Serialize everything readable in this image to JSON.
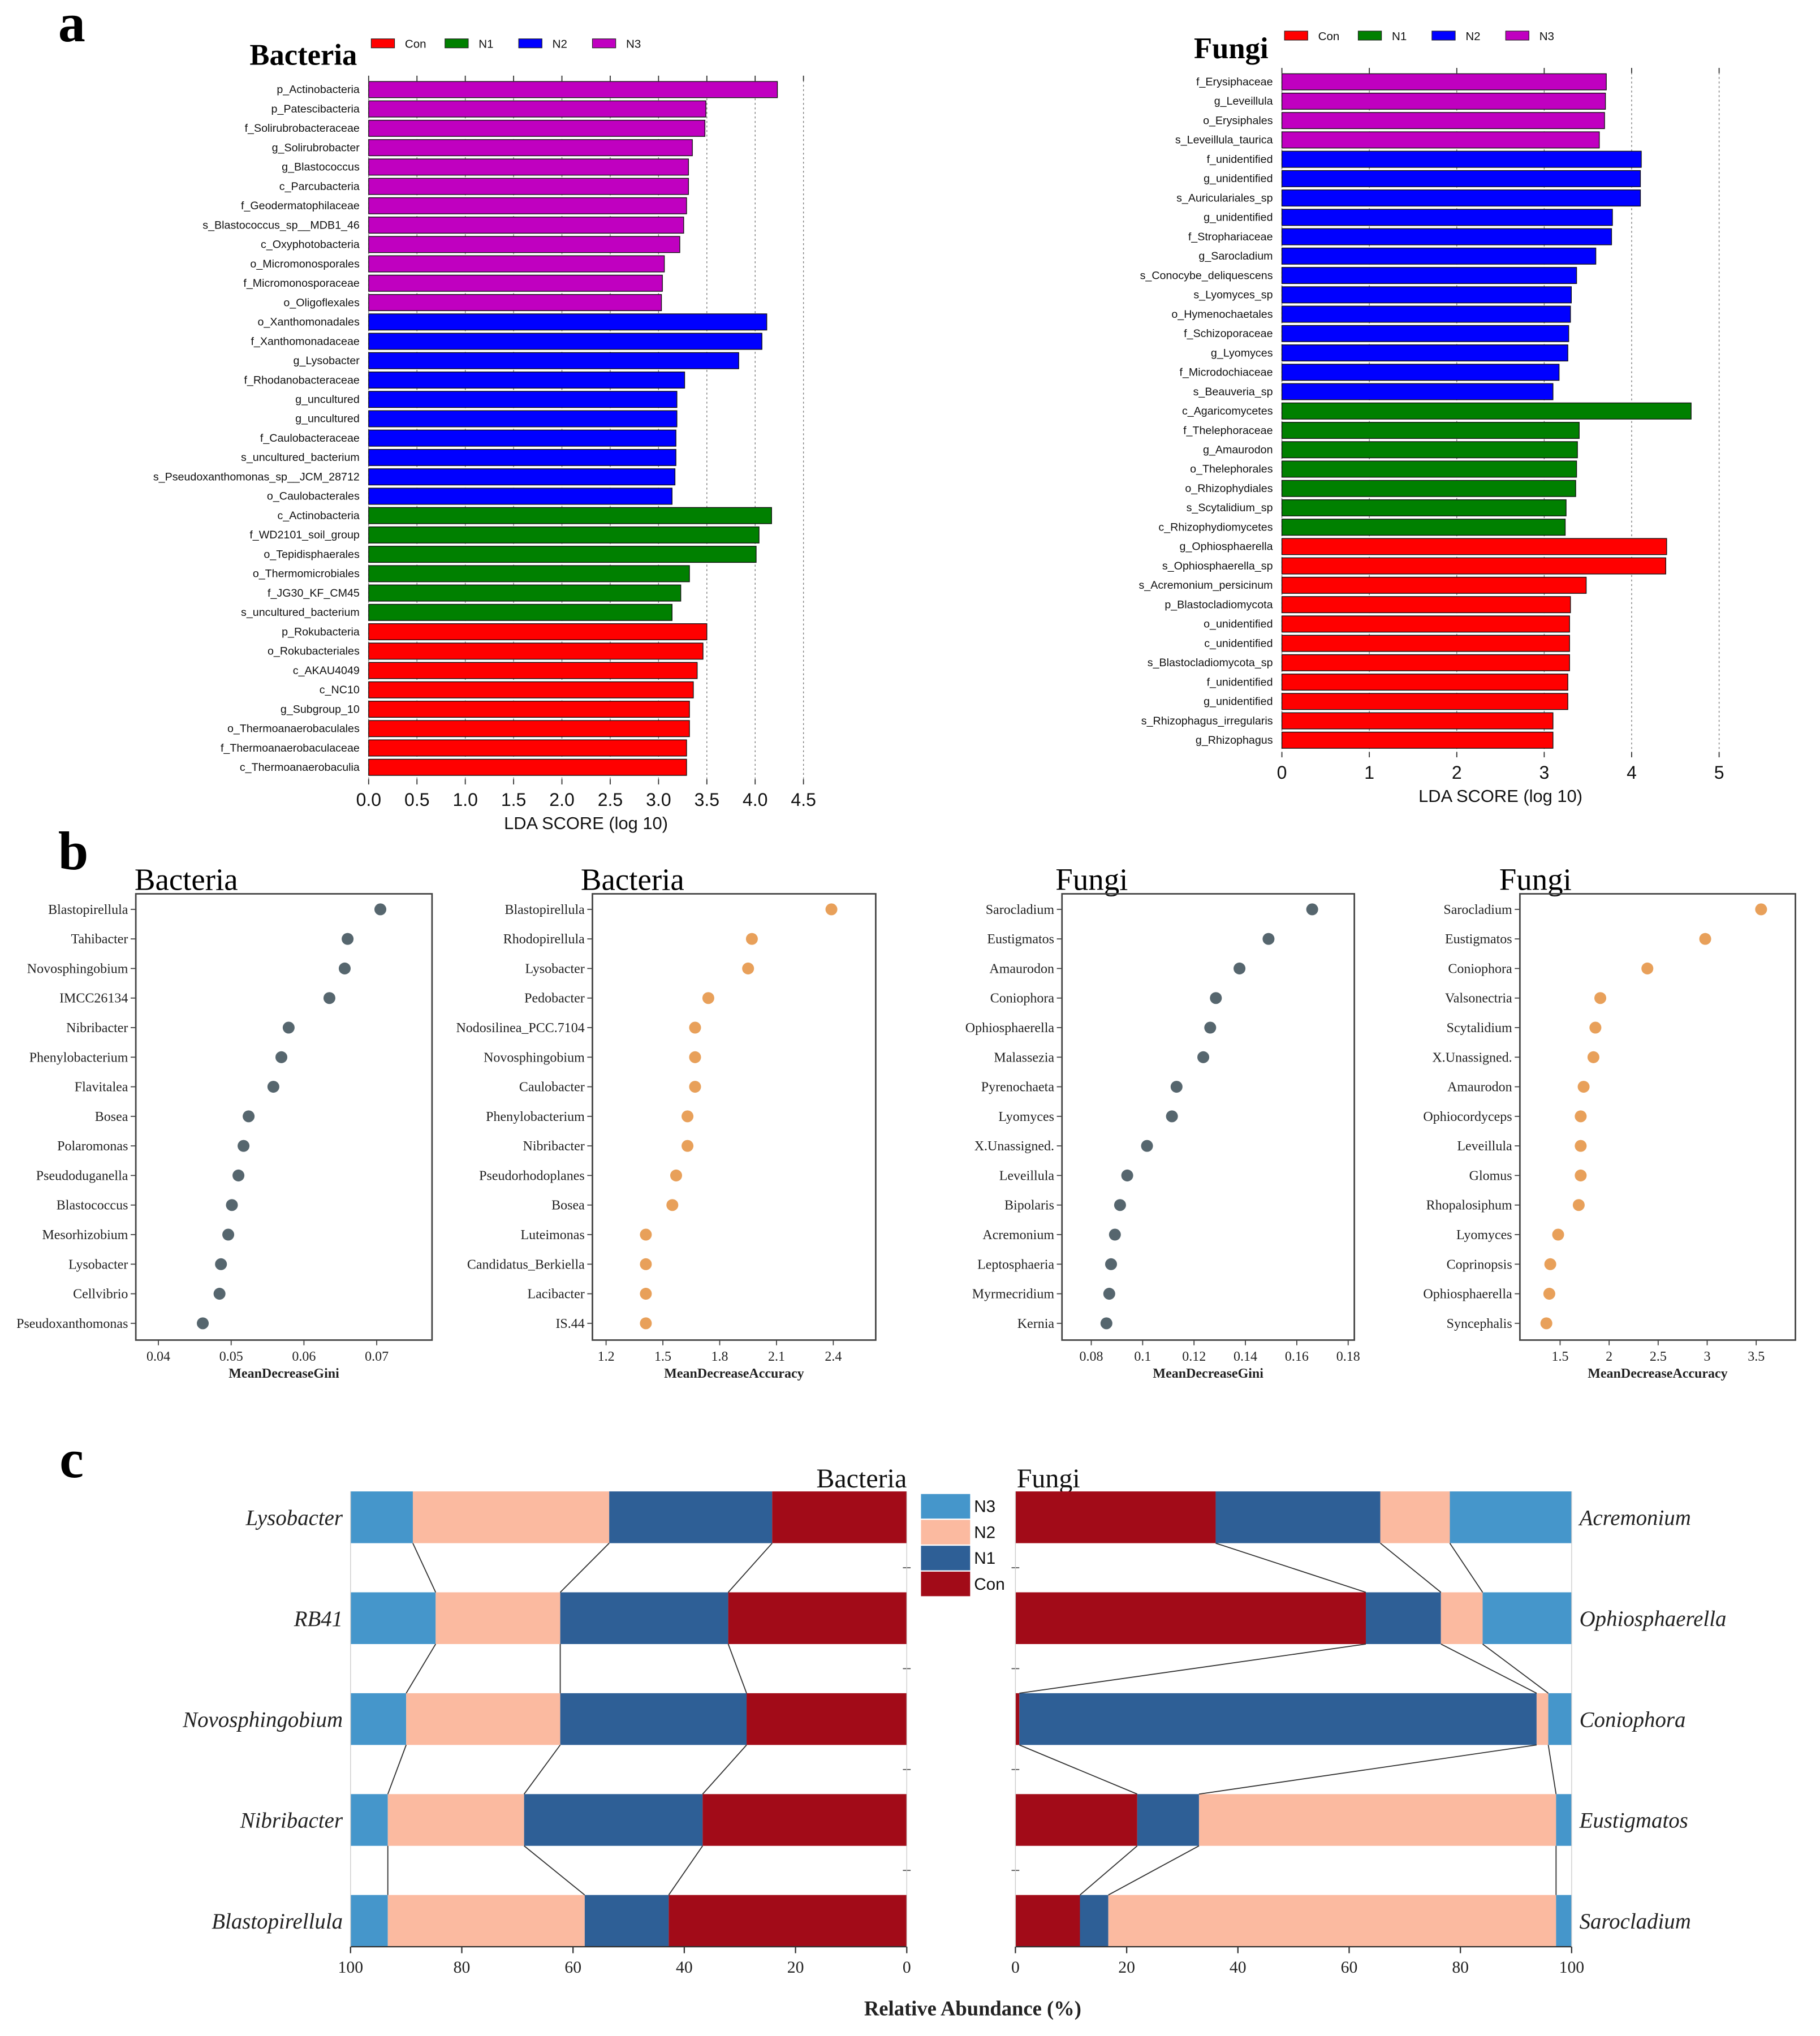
{
  "panel_labels": [
    "a",
    "b",
    "c"
  ],
  "colors": {
    "Con": "#ff0000",
    "N1": "#008000",
    "N2": "#0000ff",
    "N3": "#c000c0",
    "gini_dot": "#56666e",
    "accuracy_dot": "#e8a05a",
    "stack_N3": "#4596cb",
    "stack_N2": "#fbbaa0",
    "stack_N1": "#2e5f96",
    "stack_Con": "#a20b18"
  },
  "chart_data": [
    {
      "type": "bar",
      "orientation": "horizontal",
      "title": "Bacteria",
      "legend": [
        "Con",
        "N1",
        "N2",
        "N3"
      ],
      "legend_placement": "top",
      "xlabel": "LDA SCORE (log 10)",
      "xlim": [
        0,
        4.5
      ],
      "xticks": [
        "0.0",
        "0.5",
        "1.0",
        "1.5",
        "2.0",
        "2.5",
        "3.0",
        "3.5",
        "4.0",
        "4.5"
      ],
      "bars": [
        {
          "label": "p_Actinobacteria",
          "group": "N3",
          "value": 4.23
        },
        {
          "label": "p_Patescibacteria",
          "group": "N3",
          "value": 3.49
        },
        {
          "label": "f_Solirubrobacteraceae",
          "group": "N3",
          "value": 3.48
        },
        {
          "label": "g_Solirubrobacter",
          "group": "N3",
          "value": 3.35
        },
        {
          "label": "g_Blastococcus",
          "group": "N3",
          "value": 3.31
        },
        {
          "label": "c_Parcubacteria",
          "group": "N3",
          "value": 3.31
        },
        {
          "label": "f_Geodermatophilaceae",
          "group": "N3",
          "value": 3.29
        },
        {
          "label": "s_Blastococcus_sp__MDB1_46",
          "group": "N3",
          "value": 3.26
        },
        {
          "label": "c_Oxyphotobacteria",
          "group": "N3",
          "value": 3.22
        },
        {
          "label": "o_Micromonosporales",
          "group": "N3",
          "value": 3.06
        },
        {
          "label": "f_Micromonosporaceae",
          "group": "N3",
          "value": 3.04
        },
        {
          "label": "o_Oligoflexales",
          "group": "N3",
          "value": 3.03
        },
        {
          "label": "o_Xanthomonadales",
          "group": "N2",
          "value": 4.12
        },
        {
          "label": "f_Xanthomonadaceae",
          "group": "N2",
          "value": 4.07
        },
        {
          "label": "g_Lysobacter",
          "group": "N2",
          "value": 3.83
        },
        {
          "label": "f_Rhodanobacteraceae",
          "group": "N2",
          "value": 3.27
        },
        {
          "label": "g_uncultured",
          "group": "N2",
          "value": 3.19
        },
        {
          "label": "g_uncultured",
          "group": "N2",
          "value": 3.19
        },
        {
          "label": "f_Caulobacteraceae",
          "group": "N2",
          "value": 3.18
        },
        {
          "label": "s_uncultured_bacterium",
          "group": "N2",
          "value": 3.18
        },
        {
          "label": "s_Pseudoxanthomonas_sp__JCM_28712",
          "group": "N2",
          "value": 3.17
        },
        {
          "label": "o_Caulobacterales",
          "group": "N2",
          "value": 3.14
        },
        {
          "label": "c_Actinobacteria",
          "group": "N1",
          "value": 4.17
        },
        {
          "label": "f_WD2101_soil_group",
          "group": "N1",
          "value": 4.04
        },
        {
          "label": "o_Tepidisphaerales",
          "group": "N1",
          "value": 4.01
        },
        {
          "label": "o_Thermomicrobiales",
          "group": "N1",
          "value": 3.32
        },
        {
          "label": "f_JG30_KF_CM45",
          "group": "N1",
          "value": 3.23
        },
        {
          "label": "s_uncultured_bacterium",
          "group": "N1",
          "value": 3.14
        },
        {
          "label": "p_Rokubacteria",
          "group": "Con",
          "value": 3.5
        },
        {
          "label": "o_Rokubacteriales",
          "group": "Con",
          "value": 3.46
        },
        {
          "label": "c_AKAU4049",
          "group": "Con",
          "value": 3.4
        },
        {
          "label": "c_NC10",
          "group": "Con",
          "value": 3.36
        },
        {
          "label": "g_Subgroup_10",
          "group": "Con",
          "value": 3.32
        },
        {
          "label": "o_Thermoanaerobaculales",
          "group": "Con",
          "value": 3.32
        },
        {
          "label": "f_Thermoanaerobaculaceae",
          "group": "Con",
          "value": 3.29
        },
        {
          "label": "c_Thermoanaerobaculia",
          "group": "Con",
          "value": 3.29
        }
      ]
    },
    {
      "type": "bar",
      "orientation": "horizontal",
      "title": "Fungi",
      "legend": [
        "Con",
        "N1",
        "N2",
        "N3"
      ],
      "legend_placement": "top",
      "xlabel": "LDA SCORE (log 10)",
      "xlim": [
        0,
        5
      ],
      "xticks": [
        "0",
        "1",
        "2",
        "3",
        "4",
        "5"
      ],
      "bars": [
        {
          "label": "f_Erysiphaceae",
          "group": "N3",
          "value": 3.71
        },
        {
          "label": "g_Leveillula",
          "group": "N3",
          "value": 3.7
        },
        {
          "label": "o_Erysiphales",
          "group": "N3",
          "value": 3.69
        },
        {
          "label": "s_Leveillula_taurica",
          "group": "N3",
          "value": 3.63
        },
        {
          "label": "f_unidentified",
          "group": "N2",
          "value": 4.11
        },
        {
          "label": "g_unidentified",
          "group": "N2",
          "value": 4.1
        },
        {
          "label": "s_Auriculariales_sp",
          "group": "N2",
          "value": 4.1
        },
        {
          "label": "g_unidentified",
          "group": "N2",
          "value": 3.78
        },
        {
          "label": "f_Strophariaceae",
          "group": "N2",
          "value": 3.77
        },
        {
          "label": "g_Sarocladium",
          "group": "N2",
          "value": 3.59
        },
        {
          "label": "s_Conocybe_deliquescens",
          "group": "N2",
          "value": 3.37
        },
        {
          "label": "s_Lyomyces_sp",
          "group": "N2",
          "value": 3.31
        },
        {
          "label": "o_Hymenochaetales",
          "group": "N2",
          "value": 3.3
        },
        {
          "label": "f_Schizoporaceae",
          "group": "N2",
          "value": 3.28
        },
        {
          "label": "g_Lyomyces",
          "group": "N2",
          "value": 3.27
        },
        {
          "label": "f_Microdochiaceae",
          "group": "N2",
          "value": 3.17
        },
        {
          "label": "s_Beauveria_sp",
          "group": "N2",
          "value": 3.1
        },
        {
          "label": "c_Agaricomycetes",
          "group": "N1",
          "value": 4.68
        },
        {
          "label": "f_Thelephoraceae",
          "group": "N1",
          "value": 3.4
        },
        {
          "label": "g_Amaurodon",
          "group": "N1",
          "value": 3.38
        },
        {
          "label": "o_Thelephorales",
          "group": "N1",
          "value": 3.37
        },
        {
          "label": "o_Rhizophydiales",
          "group": "N1",
          "value": 3.36
        },
        {
          "label": "s_Scytalidium_sp",
          "group": "N1",
          "value": 3.25
        },
        {
          "label": "c_Rhizophydiomycetes",
          "group": "N1",
          "value": 3.24
        },
        {
          "label": "g_Ophiosphaerella",
          "group": "Con",
          "value": 4.4
        },
        {
          "label": "s_Ophiosphaerella_sp",
          "group": "Con",
          "value": 4.39
        },
        {
          "label": "s_Acremonium_persicinum",
          "group": "Con",
          "value": 3.48
        },
        {
          "label": "p_Blastocladiomycota",
          "group": "Con",
          "value": 3.3
        },
        {
          "label": "o_unidentified",
          "group": "Con",
          "value": 3.29
        },
        {
          "label": "c_unidentified",
          "group": "Con",
          "value": 3.29
        },
        {
          "label": "s_Blastocladiomycota_sp",
          "group": "Con",
          "value": 3.29
        },
        {
          "label": "f_unidentified",
          "group": "Con",
          "value": 3.27
        },
        {
          "label": "g_unidentified",
          "group": "Con",
          "value": 3.27
        },
        {
          "label": "s_Rhizophagus_irregularis",
          "group": "Con",
          "value": 3.1
        },
        {
          "label": "g_Rhizophagus",
          "group": "Con",
          "value": 3.1
        }
      ]
    },
    {
      "type": "scatter",
      "title": "Bacteria",
      "xlabel": "MeanDecreaseGini",
      "xlim": [
        0.0369,
        0.0776
      ],
      "xticks": [
        0.04,
        0.05,
        0.06,
        0.07
      ],
      "xtick_labels": [
        "0.04",
        "0.05",
        "0.06",
        "0.07"
      ],
      "grid": false,
      "points": [
        {
          "label": "Blastopirellula",
          "value": 0.0705
        },
        {
          "label": "Tahibacter",
          "value": 0.066
        },
        {
          "label": "Novosphingobium",
          "value": 0.0656
        },
        {
          "label": "IMCC26134",
          "value": 0.0635
        },
        {
          "label": "Nibribacter",
          "value": 0.0579
        },
        {
          "label": "Phenylobacterium",
          "value": 0.0569
        },
        {
          "label": "Flavitalea",
          "value": 0.0558
        },
        {
          "label": "Bosea",
          "value": 0.0524
        },
        {
          "label": "Polaromonas",
          "value": 0.0517
        },
        {
          "label": "Pseudoduganella",
          "value": 0.051
        },
        {
          "label": "Blastococcus",
          "value": 0.0501
        },
        {
          "label": "Mesorhizobium",
          "value": 0.0496
        },
        {
          "label": "Lysobacter",
          "value": 0.0486
        },
        {
          "label": "Cellvibrio",
          "value": 0.0484
        },
        {
          "label": "Pseudoxanthomonas",
          "value": 0.0461
        }
      ]
    },
    {
      "type": "scatter",
      "title": "Bacteria",
      "xlabel": "MeanDecreaseAccuracy",
      "xlim": [
        1.128,
        2.624
      ],
      "xticks": [
        1.2,
        1.5,
        1.8,
        2.1,
        2.4
      ],
      "xtick_labels": [
        "1.2",
        "1.5",
        "1.8",
        "2.1",
        "2.4"
      ],
      "grid": false,
      "points": [
        {
          "label": "Blastopirellula",
          "value": 2.39
        },
        {
          "label": "Rhodopirellula",
          "value": 1.97
        },
        {
          "label": "Lysobacter",
          "value": 1.95
        },
        {
          "label": "Pedobacter",
          "value": 1.74
        },
        {
          "label": "Nodosilinea_PCC.7104",
          "value": 1.67
        },
        {
          "label": "Novosphingobium",
          "value": 1.67
        },
        {
          "label": "Caulobacter",
          "value": 1.67
        },
        {
          "label": "Phenylobacterium",
          "value": 1.63
        },
        {
          "label": "Nibribacter",
          "value": 1.63
        },
        {
          "label": "Pseudorhodoplanes",
          "value": 1.57
        },
        {
          "label": "Bosea",
          "value": 1.55
        },
        {
          "label": "Luteimonas",
          "value": 1.41
        },
        {
          "label": "Candidatus_Berkiella",
          "value": 1.41
        },
        {
          "label": "Lacibacter",
          "value": 1.41
        },
        {
          "label": "IS.44",
          "value": 1.41
        }
      ]
    },
    {
      "type": "scatter",
      "title": "Fungi",
      "xlabel": "MeanDecreaseGini",
      "xlim": [
        0.0686,
        0.1824
      ],
      "xticks": [
        0.08,
        0.1,
        0.12,
        0.14,
        0.16,
        0.18
      ],
      "xtick_labels": [
        "0.08",
        "0.1",
        "0.12",
        "0.14",
        "0.16",
        "0.18"
      ],
      "grid": false,
      "points": [
        {
          "label": "Sarocladium",
          "value": 0.166
        },
        {
          "label": "Eustigmatos",
          "value": 0.149
        },
        {
          "label": "Amaurodon",
          "value": 0.1377
        },
        {
          "label": "Coniophora",
          "value": 0.1285
        },
        {
          "label": "Ophiosphaerella",
          "value": 0.1263
        },
        {
          "label": "Malassezia",
          "value": 0.1236
        },
        {
          "label": "Pyrenochaeta",
          "value": 0.1132
        },
        {
          "label": "Lyomyces",
          "value": 0.1114
        },
        {
          "label": "X.Unassigned.",
          "value": 0.1017
        },
        {
          "label": "Leveillula",
          "value": 0.094
        },
        {
          "label": "Bipolaris",
          "value": 0.0912
        },
        {
          "label": "Acremonium",
          "value": 0.0892
        },
        {
          "label": "Leptosphaeria",
          "value": 0.0877
        },
        {
          "label": "Myrmecridium",
          "value": 0.087
        },
        {
          "label": "Kernia",
          "value": 0.0859
        }
      ]
    },
    {
      "type": "scatter",
      "title": "Fungi",
      "xlabel": "MeanDecreaseAccuracy",
      "xlim": [
        1.09,
        3.9
      ],
      "xticks": [
        1.5,
        2,
        2.5,
        3,
        3.5
      ],
      "xtick_labels": [
        "1.5",
        "2",
        "2.5",
        "3",
        "3.5"
      ],
      "grid": false,
      "points": [
        {
          "label": "Sarocladium",
          "value": 3.55
        },
        {
          "label": "Eustigmatos",
          "value": 2.98
        },
        {
          "label": "Coniophora",
          "value": 2.39
        },
        {
          "label": "Valsonectria",
          "value": 1.91
        },
        {
          "label": "Scytalidium",
          "value": 1.86
        },
        {
          "label": "X.Unassigned.",
          "value": 1.84
        },
        {
          "label": "Amaurodon",
          "value": 1.74
        },
        {
          "label": "Ophiocordyceps",
          "value": 1.71
        },
        {
          "label": "Leveillula",
          "value": 1.71
        },
        {
          "label": "Glomus",
          "value": 1.71
        },
        {
          "label": "Rhopalosiphum",
          "value": 1.69
        },
        {
          "label": "Lyomyces",
          "value": 1.48
        },
        {
          "label": "Coprinopsis",
          "value": 1.4
        },
        {
          "label": "Ophiosphaerella",
          "value": 1.39
        },
        {
          "label": "Syncephalis",
          "value": 1.36
        }
      ]
    },
    {
      "type": "bar",
      "stacked": true,
      "orientation": "horizontal",
      "title": "Bacteria",
      "reversed_x": true,
      "xlim": [
        100,
        0
      ],
      "xticks": [
        "100",
        "80",
        "60",
        "40",
        "20",
        "0"
      ],
      "segment_order": [
        "N3",
        "N2",
        "N1",
        "Con"
      ],
      "rows": [
        {
          "label": "Lysobacter",
          "values": {
            "N3": 11.2,
            "N2": 35.3,
            "N1": 29.3,
            "Con": 24.2
          }
        },
        {
          "label": "RB41",
          "values": {
            "N3": 15.3,
            "N2": 22.4,
            "N1": 30.2,
            "Con": 32.1
          }
        },
        {
          "label": "Novosphingobium",
          "values": {
            "N3": 10.0,
            "N2": 27.7,
            "N1": 33.5,
            "Con": 28.8
          }
        },
        {
          "label": "Nibribacter",
          "values": {
            "N3": 6.7,
            "N2": 24.5,
            "N1": 32.1,
            "Con": 36.7
          }
        },
        {
          "label": "Blastopirellula",
          "values": {
            "N3": 6.7,
            "N2": 35.4,
            "N1": 15.1,
            "Con": 42.8
          }
        }
      ]
    },
    {
      "type": "bar",
      "stacked": true,
      "orientation": "horizontal",
      "title": "Fungi",
      "reversed_x": false,
      "xlim": [
        0,
        100
      ],
      "xticks": [
        "0",
        "20",
        "40",
        "60",
        "80",
        "100"
      ],
      "segment_order": [
        "Con",
        "N1",
        "N2",
        "N3"
      ],
      "rows": [
        {
          "label": "Acremonium",
          "values": {
            "Con": 36.0,
            "N1": 29.6,
            "N2": 12.5,
            "N3": 21.9
          }
        },
        {
          "label": "Ophiosphaerella",
          "values": {
            "Con": 63.0,
            "N1": 13.5,
            "N2": 7.5,
            "N3": 16.0
          }
        },
        {
          "label": "Coniophora",
          "values": {
            "Con": 0.7,
            "N1": 93.0,
            "N2": 2.1,
            "N3": 4.2
          }
        },
        {
          "label": "Eustigmatos",
          "values": {
            "Con": 21.9,
            "N1": 11.1,
            "N2": 64.2,
            "N3": 2.8
          }
        },
        {
          "label": "Sarocladium",
          "values": {
            "Con": 11.6,
            "N1": 5.1,
            "N2": 80.5,
            "N3": 2.8
          }
        }
      ]
    }
  ],
  "panel_c": {
    "legend": [
      "N3",
      "N2",
      "N1",
      "Con"
    ],
    "xlabel": "Relative Abundance (%)"
  }
}
